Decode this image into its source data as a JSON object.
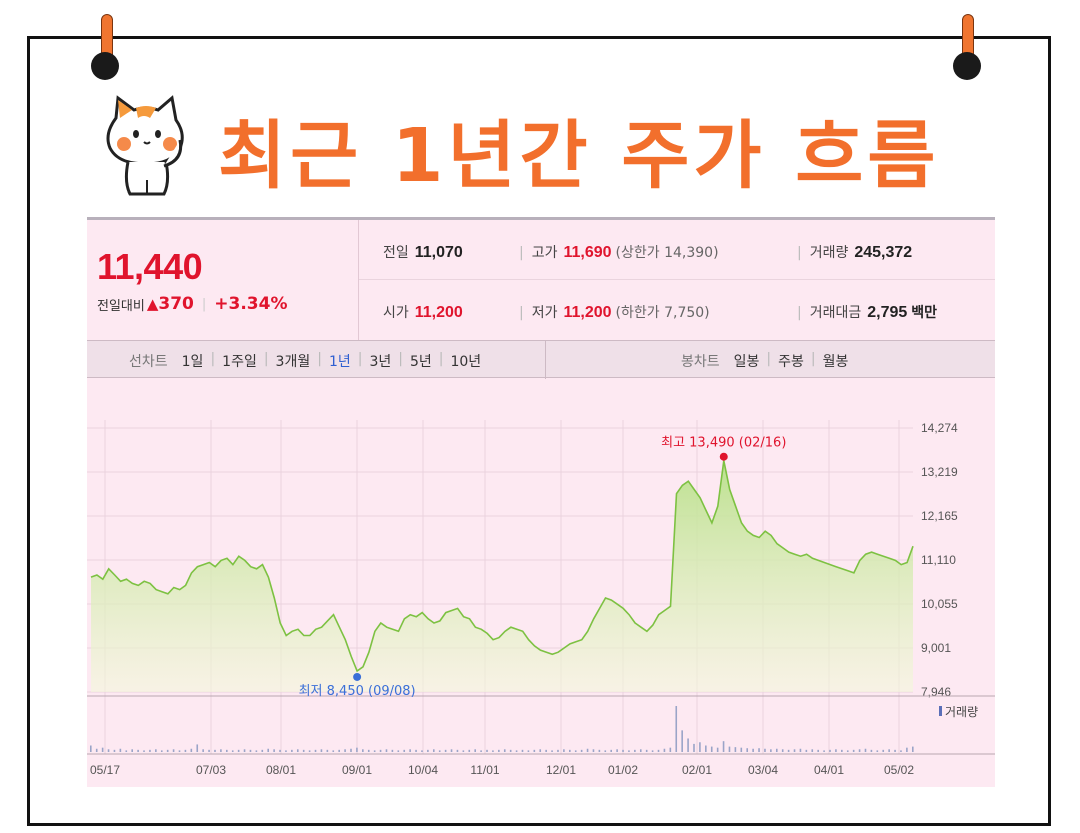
{
  "heading": "최근 1년간 주가 흐름",
  "quote": {
    "price": "11,440",
    "change_label": "전일대비",
    "change_value": "370",
    "change_pct": "+3.34%"
  },
  "stats": {
    "prev_label": "전일",
    "prev_value": "11,070",
    "open_label": "시가",
    "open_value": "11,200",
    "high_label": "고가",
    "high_value": "11,690",
    "upper_limit": "(상한가 14,390)",
    "low_label": "저가",
    "low_value": "11,200",
    "lower_limit": "(하한가 7,750)",
    "volume_label": "거래량",
    "volume_value": "245,372",
    "amount_label": "거래대금",
    "amount_value": "2,795",
    "amount_unit": "백만"
  },
  "tabs": {
    "line_label": "선차트",
    "line_periods": [
      "1일",
      "1주일",
      "3개월",
      "1년",
      "3년",
      "5년",
      "10년"
    ],
    "active_period": "1년",
    "candle_label": "봉차트",
    "candle_periods": [
      "일봉",
      "주봉",
      "월봉"
    ]
  },
  "colors": {
    "up_red": "#e0142d",
    "active_tab": "#2f5fd1",
    "line_green": "#7dc142",
    "low_blue": "#3a6fd8",
    "heading_orange": "#f26f2c"
  },
  "chart_data": {
    "type": "area",
    "x_ticks": [
      "05/17",
      "07/03",
      "08/01",
      "09/01",
      "10/04",
      "11/01",
      "12/01",
      "01/02",
      "02/01",
      "03/04",
      "04/01",
      "05/02"
    ],
    "y_ticks": [
      14274,
      13219,
      12165,
      11110,
      10055,
      9001,
      7946
    ],
    "y_tick_labels": [
      "14,274",
      "13,219",
      "12,165",
      "11,110",
      "10,055",
      "9,001",
      "7,946"
    ],
    "ylim": [
      7946,
      14274
    ],
    "high": {
      "label": "최고 13,490 (02/16)",
      "value": 13490,
      "date": "02/16"
    },
    "low": {
      "label": "최저 8,450 (09/08)",
      "value": 8450,
      "date": "09/08"
    },
    "volume_label": "거래량",
    "series": [
      {
        "values": [
          10700,
          10750,
          10650,
          10900,
          10750,
          10600,
          10650,
          10550,
          10500,
          10600,
          10550,
          10400,
          10350,
          10300,
          10450,
          10400,
          10500,
          10800,
          10950,
          11000,
          11050,
          10950,
          11100,
          11150,
          11000,
          11200,
          11100,
          10950,
          10900,
          11000,
          10700,
          10200,
          9600,
          9300,
          9400,
          9450,
          9300,
          9300,
          9450,
          9500,
          9650,
          9800,
          9500,
          9200,
          8800,
          8450,
          8550,
          8900,
          9400,
          9600,
          9500,
          9450,
          9400,
          9700,
          9800,
          9750,
          9850,
          9700,
          9600,
          9650,
          9850,
          9900,
          9950,
          9750,
          9700,
          9500,
          9450,
          9350,
          9200,
          9250,
          9400,
          9500,
          9450,
          9400,
          9200,
          9050,
          8950,
          8900,
          8850,
          8900,
          9000,
          9100,
          9150,
          9200,
          9400,
          9700,
          9950,
          10200,
          10150,
          10050,
          9950,
          9800,
          9600,
          9500,
          9400,
          9550,
          9800,
          9900,
          10000,
          12700,
          12900,
          13000,
          12800,
          12600,
          12300,
          12000,
          12400,
          13490,
          12800,
          12400,
          12000,
          11800,
          11700,
          11650,
          11800,
          11700,
          11500,
          11400,
          11300,
          11250,
          11200,
          11250,
          11150,
          11100,
          11050,
          11000,
          10950,
          10900,
          10850,
          10800,
          11100,
          11250,
          11300,
          11250,
          11200,
          11150,
          11100,
          11000,
          11050,
          11440
        ]
      }
    ],
    "volume": [
      12,
      6,
      8,
      5,
      4,
      6,
      3,
      5,
      4,
      3,
      4,
      5,
      3,
      4,
      5,
      3,
      4,
      6,
      14,
      5,
      4,
      4,
      5,
      4,
      3,
      4,
      5,
      4,
      3,
      4,
      6,
      5,
      4,
      3,
      4,
      5,
      4,
      3,
      4,
      5,
      4,
      3,
      4,
      5,
      6,
      8,
      5,
      4,
      3,
      4,
      5,
      4,
      3,
      4,
      5,
      4,
      3,
      4,
      5,
      3,
      4,
      5,
      4,
      3,
      4,
      5,
      3,
      4,
      3,
      4,
      5,
      4,
      3,
      4,
      3,
      4,
      5,
      4,
      3,
      4,
      5,
      4,
      3,
      4,
      6,
      5,
      4,
      3,
      4,
      5,
      4,
      3,
      4,
      5,
      4,
      3,
      4,
      6,
      8,
      85,
      40,
      25,
      15,
      18,
      12,
      10,
      8,
      20,
      10,
      9,
      8,
      7,
      6,
      7,
      6,
      5,
      6,
      5,
      4,
      5,
      6,
      4,
      5,
      4,
      3,
      4,
      5,
      4,
      3,
      4,
      5,
      6,
      4,
      3,
      4,
      5,
      4,
      3,
      8,
      10
    ]
  }
}
